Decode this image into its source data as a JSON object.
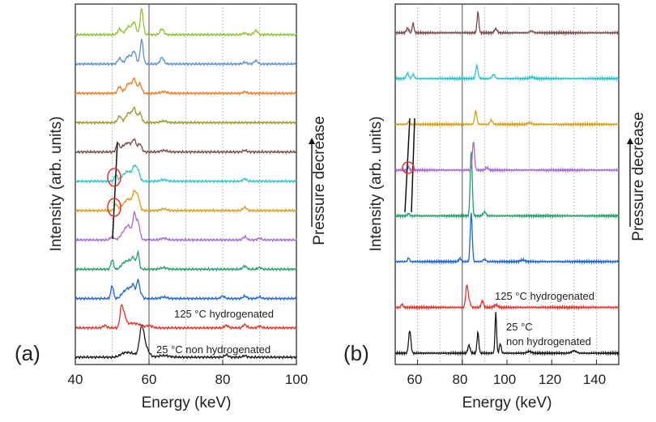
{
  "chart_data": [
    {
      "panel": "(a)",
      "type": "line",
      "xlabel": "Energy (keV)",
      "ylabel": "Intensity (arb. units)",
      "side_label": "Pressure decrease",
      "xlim": [
        40,
        100
      ],
      "xticks": [
        40,
        60,
        80,
        100
      ],
      "grid_x": [
        50,
        60,
        70,
        80,
        90
      ],
      "grid_major": 60,
      "series": [
        {
          "color": "#1a1a1a",
          "baseline": 0.0,
          "base_amp": 1.5,
          "peaks": [
            [
              53,
              3,
              1
            ],
            [
              55,
              5,
              1.5
            ],
            [
              58,
              32,
              0.6
            ],
            [
              59,
              12,
              0.9
            ],
            [
              64,
              2,
              1.5
            ],
            [
              81,
              3,
              0.5
            ],
            [
              86,
              2,
              0.5
            ]
          ]
        },
        {
          "color": "#e8322c",
          "baseline": 1.0,
          "base_amp": 1.5,
          "peaks": [
            [
              48,
              3,
              0.5
            ],
            [
              52.5,
              24,
              0.4
            ],
            [
              53.3,
              14,
              0.5
            ],
            [
              55,
              5,
              1
            ],
            [
              57,
              4,
              1
            ],
            [
              60,
              3,
              0.8
            ],
            [
              81,
              3,
              0.5
            ],
            [
              86,
              4,
              0.5
            ],
            [
              90,
              2,
              0.5
            ]
          ]
        },
        {
          "color": "#1e66d6",
          "baseline": 2.0,
          "base_amp": 1.5,
          "peaks": [
            [
              50,
              16,
              0.35
            ],
            [
              53,
              6,
              0.7
            ],
            [
              54.5,
              12,
              0.8
            ],
            [
              55.8,
              14,
              0.5
            ],
            [
              57,
              22,
              0.35
            ],
            [
              57.8,
              6,
              0.4
            ],
            [
              64,
              2,
              0.8
            ],
            [
              80,
              3,
              0.5
            ],
            [
              86,
              3,
              0.5
            ],
            [
              90,
              2,
              0.5
            ]
          ]
        },
        {
          "color": "#23a068",
          "baseline": 3.0,
          "base_amp": 1.5,
          "peaks": [
            [
              50,
              12,
              0.35
            ],
            [
              53,
              6,
              0.7
            ],
            [
              54.5,
              10,
              0.8
            ],
            [
              55.8,
              12,
              0.5
            ],
            [
              57,
              20,
              0.35
            ],
            [
              64,
              2,
              0.8
            ],
            [
              86,
              4,
              0.5
            ],
            [
              90,
              2,
              0.5
            ]
          ]
        },
        {
          "color": "#a86ad8",
          "baseline": 4.0,
          "base_amp": 1.5,
          "peaks": [
            [
              50,
              4,
              0.5
            ],
            [
              53,
              8,
              0.8
            ],
            [
              54.5,
              16,
              0.8
            ],
            [
              56,
              28,
              0.4
            ],
            [
              57,
              22,
              0.5
            ],
            [
              64,
              2,
              0.8
            ],
            [
              86,
              4,
              0.5
            ],
            [
              90,
              2,
              0.5
            ]
          ]
        },
        {
          "color": "#d4a017",
          "baseline": 5.0,
          "base_amp": 1.5,
          "peaks": [
            [
              51,
              8,
              0.4
            ],
            [
              53,
              6,
              0.8
            ],
            [
              54.5,
              13,
              0.8
            ],
            [
              56,
              20,
              0.5
            ],
            [
              57,
              16,
              0.5
            ],
            [
              64,
              2,
              0.8
            ],
            [
              86,
              4,
              0.5
            ]
          ]
        },
        {
          "color": "#2cc6c6",
          "baseline": 6.0,
          "base_amp": 1.5,
          "peaks": [
            [
              51,
              8,
              0.4
            ],
            [
              53,
              6,
              0.8
            ],
            [
              54.5,
              11,
              0.8
            ],
            [
              56,
              16,
              0.5
            ],
            [
              57,
              13,
              0.5
            ],
            [
              64,
              2,
              0.8
            ],
            [
              86,
              3,
              0.5
            ]
          ]
        },
        {
          "color": "#7a4a4a",
          "baseline": 7.0,
          "base_amp": 1.5,
          "peaks": [
            [
              51.5,
              10,
              0.4
            ],
            [
              53,
              6,
              0.8
            ],
            [
              54.5,
              10,
              0.8
            ],
            [
              56,
              14,
              0.5
            ],
            [
              57.5,
              10,
              0.5
            ],
            [
              64,
              2,
              0.8
            ],
            [
              86,
              2,
              0.5
            ]
          ]
        },
        {
          "color": "#9a9a2a",
          "baseline": 8.0,
          "base_amp": 1.5,
          "peaks": [
            [
              52,
              8,
              0.5
            ],
            [
              54.5,
              12,
              0.8
            ],
            [
              56,
              16,
              0.5
            ],
            [
              57.5,
              12,
              0.5
            ],
            [
              64,
              2,
              0.8
            ]
          ]
        },
        {
          "color": "#ef7d22",
          "baseline": 9.0,
          "base_amp": 1.5,
          "peaks": [
            [
              52,
              8,
              0.5
            ],
            [
              54.5,
              12,
              0.8
            ],
            [
              56,
              16,
              0.5
            ],
            [
              57.5,
              12,
              0.5
            ],
            [
              64,
              2,
              0.8
            ],
            [
              86,
              2,
              0.5
            ]
          ]
        },
        {
          "color": "#5b8fd4",
          "baseline": 10.0,
          "base_amp": 1.5,
          "peaks": [
            [
              52,
              7,
              0.5
            ],
            [
              54.5,
              10,
              0.8
            ],
            [
              56,
              14,
              0.5
            ],
            [
              58,
              30,
              0.4
            ],
            [
              63.5,
              8,
              0.5
            ],
            [
              86,
              2,
              0.5
            ],
            [
              89,
              4,
              0.5
            ]
          ]
        },
        {
          "color": "#8fc133",
          "baseline": 11.0,
          "base_amp": 1.5,
          "peaks": [
            [
              52,
              7,
              0.5
            ],
            [
              54.5,
              10,
              0.8
            ],
            [
              56,
              14,
              0.5
            ],
            [
              58,
              32,
              0.4
            ],
            [
              63.5,
              7,
              0.5
            ],
            [
              86,
              2,
              0.5
            ],
            [
              89,
              5,
              0.5
            ]
          ]
        }
      ],
      "annotations": [
        "125 °C hydrogenated",
        "25 °C non hydrogenated"
      ],
      "annotation_colors": [
        "#e8322c",
        "#1a1a1a"
      ]
    },
    {
      "panel": "(b)",
      "type": "line",
      "xlabel": "Energy (keV)",
      "ylabel": "Intensity (arb. units)",
      "side_label": "Pressure decrease",
      "xlim": [
        50,
        150
      ],
      "xticks": [
        60,
        80,
        100,
        120,
        140
      ],
      "grid_x": [
        60,
        70,
        80,
        90,
        100,
        110,
        120,
        130,
        140
      ],
      "grid_major": 80,
      "series": [
        {
          "color": "#1a1a1a",
          "baseline": 0.0,
          "base_amp": 1.5,
          "peaks": [
            [
              56.5,
              28,
              0.5
            ],
            [
              83,
              10,
              0.5
            ],
            [
              87,
              26,
              0.4
            ],
            [
              95,
              50,
              0.35
            ],
            [
              97,
              12,
              0.4
            ],
            [
              110,
              2,
              1
            ],
            [
              130,
              3,
              1
            ]
          ]
        },
        {
          "color": "#e8322c",
          "baseline": 1.0,
          "base_amp": 1.5,
          "peaks": [
            [
              53,
              4,
              0.4
            ],
            [
              82,
              26,
              0.5
            ],
            [
              83,
              8,
              0.6
            ],
            [
              89,
              8,
              0.5
            ],
            [
              95,
              3,
              0.8
            ]
          ]
        },
        {
          "color": "#1e66d6",
          "baseline": 2.0,
          "base_amp": 1.5,
          "peaks": [
            [
              56,
              5,
              0.4
            ],
            [
              79,
              4,
              0.5
            ],
            [
              84,
              60,
              0.45
            ],
            [
              90,
              3,
              0.6
            ],
            [
              107,
              2,
              1
            ]
          ]
        },
        {
          "color": "#23a068",
          "baseline": 3.0,
          "base_amp": 1.5,
          "peaks": [
            [
              56,
              3,
              0.4
            ],
            [
              84,
              80,
              0.45
            ],
            [
              90,
              5,
              0.6
            ]
          ]
        },
        {
          "color": "#a86ad8",
          "baseline": 4.0,
          "base_amp": 1.5,
          "peaks": [
            [
              56,
              4,
              0.4
            ],
            [
              85,
              36,
              0.45
            ],
            [
              91,
              3,
              0.6
            ]
          ]
        },
        {
          "color": "#d4a017",
          "baseline": 5.0,
          "base_amp": 1.5,
          "peaks": [
            [
              56,
              3,
              0.4
            ],
            [
              86,
              16,
              0.5
            ],
            [
              93,
              5,
              0.6
            ],
            [
              110,
              2,
              0.8
            ]
          ]
        },
        {
          "color": "#2cc6c6",
          "baseline": 6.0,
          "base_amp": 1.5,
          "peaks": [
            [
              55.5,
              7,
              0.5
            ],
            [
              58,
              5,
              0.5
            ],
            [
              86.5,
              16,
              0.5
            ],
            [
              94,
              5,
              0.6
            ],
            [
              111,
              2,
              0.8
            ]
          ]
        },
        {
          "color": "#7a4a4a",
          "baseline": 7.0,
          "base_amp": 1.5,
          "peaks": [
            [
              55.5,
              6,
              0.5
            ],
            [
              58,
              12,
              0.4
            ],
            [
              87,
              26,
              0.4
            ],
            [
              95,
              5,
              0.6
            ],
            [
              111,
              2,
              0.8
            ]
          ]
        }
      ],
      "annotations": [
        "125 °C hydrogenated",
        "25 °C",
        "non hydrogenated"
      ],
      "annotation_colors": [
        "#e8322c",
        "#1a1a1a",
        "#1a1a1a"
      ]
    }
  ]
}
